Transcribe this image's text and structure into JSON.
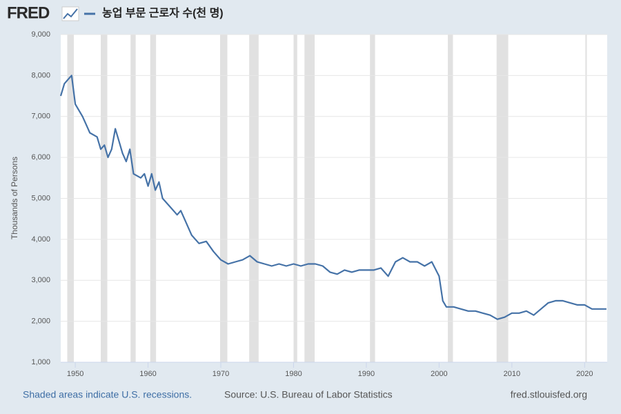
{
  "logo": "FRED",
  "chart_data": {
    "type": "line",
    "y_label": "Thousands of Persons",
    "note": "Shaded areas indicate U.S. recessions.",
    "source": "Source: U.S. Bureau of Labor Statistics",
    "site": "fred.stlouisfed.org",
    "xlim": [
      1948,
      2023.1
    ],
    "xticks": [
      1950,
      1960,
      1970,
      1980,
      1990,
      2000,
      2010,
      2020
    ],
    "ylim": [
      1000,
      9000
    ],
    "yticks": [
      {
        "value": 1000,
        "label": "1,000"
      },
      {
        "value": 2000,
        "label": "2,000"
      },
      {
        "value": 3000,
        "label": "3,000"
      },
      {
        "value": 4000,
        "label": "4,000"
      },
      {
        "value": 5000,
        "label": "5,000"
      },
      {
        "value": 6000,
        "label": "6,000"
      },
      {
        "value": 7000,
        "label": "7,000"
      },
      {
        "value": 8000,
        "label": "8,000"
      },
      {
        "value": 9000,
        "label": "9,000"
      }
    ],
    "grid": true,
    "recessions": [
      [
        1948.9,
        1949.8
      ],
      [
        1953.5,
        1954.4
      ],
      [
        1957.6,
        1958.3
      ],
      [
        1960.3,
        1961.1
      ],
      [
        1969.9,
        1970.9
      ],
      [
        1973.9,
        1975.2
      ],
      [
        1980.0,
        1980.5
      ],
      [
        1981.5,
        1982.9
      ],
      [
        1990.5,
        1991.2
      ],
      [
        2001.2,
        2001.9
      ],
      [
        2007.9,
        2009.5
      ],
      [
        2020.1,
        2020.3
      ]
    ],
    "recession_color": "#e1e1e1",
    "x": [
      1948,
      1948.5,
      1949,
      1949.5,
      1950,
      1951,
      1951.5,
      1952,
      1953,
      1953.5,
      1954,
      1954.5,
      1955,
      1955.5,
      1956,
      1956.5,
      1957,
      1957.5,
      1958,
      1959,
      1959.5,
      1960,
      1960.5,
      1961,
      1961.5,
      1962,
      1963,
      1964,
      1964.5,
      1965,
      1966,
      1967,
      1968,
      1969,
      1970,
      1971,
      1972,
      1973,
      1974,
      1975,
      1976,
      1977,
      1978,
      1979,
      1980,
      1981,
      1982,
      1983,
      1984,
      1985,
      1986,
      1987,
      1988,
      1989,
      1990,
      1991,
      1992,
      1993,
      1994,
      1995,
      1996,
      1997,
      1998,
      1999,
      2000,
      2000.5,
      2001,
      2002,
      2003,
      2004,
      2005,
      2006,
      2007,
      2008,
      2009,
      2010,
      2011,
      2012,
      2013,
      2014,
      2015,
      2016,
      2017,
      2018,
      2019,
      2020,
      2021,
      2022,
      2023
    ],
    "series": [
      {
        "name": "농업 부문 근로자 수(천 명)",
        "color": "#4572a7",
        "values": [
          7500,
          7800,
          7900,
          8000,
          7300,
          7000,
          6800,
          6600,
          6500,
          6200,
          6300,
          6000,
          6200,
          6700,
          6400,
          6100,
          5900,
          6200,
          5600,
          5500,
          5600,
          5300,
          5600,
          5200,
          5400,
          5000,
          4800,
          4600,
          4700,
          4500,
          4100,
          3900,
          3950,
          3700,
          3500,
          3400,
          3450,
          3500,
          3600,
          3450,
          3400,
          3350,
          3400,
          3350,
          3400,
          3350,
          3400,
          3400,
          3350,
          3200,
          3150,
          3250,
          3200,
          3250,
          3250,
          3250,
          3300,
          3100,
          3450,
          3550,
          3450,
          3450,
          3350,
          3450,
          3100,
          2500,
          2350,
          2350,
          2300,
          2250,
          2250,
          2200,
          2150,
          2050,
          2100,
          2200,
          2200,
          2250,
          2150,
          2300,
          2450,
          2500,
          2500,
          2450,
          2400,
          2400,
          2300,
          2300,
          2300
        ]
      }
    ]
  }
}
